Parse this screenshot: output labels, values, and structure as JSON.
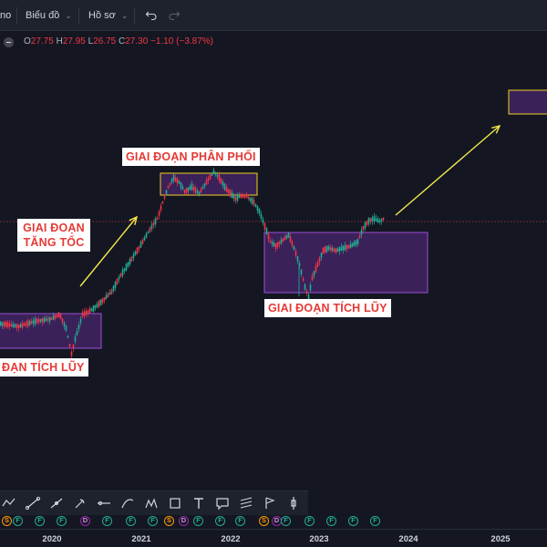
{
  "topbar": {
    "left_fragment": "no",
    "chart_menu": "Biểu đồ",
    "profile_menu": "Hồ sơ"
  },
  "ohlc": {
    "o_label": "O",
    "o": "27.75",
    "h_label": "H",
    "h": "27.95",
    "l_label": "L",
    "l": "26.75",
    "c_label": "C",
    "c": "27.30",
    "change": "−1.10 (−3.87%)"
  },
  "annotations": {
    "tich_luy_1": "ĐẠN TÍCH LŨY",
    "tang_toc": "GIAI ĐOẠN TĂNG TỐC",
    "phan_phoi": "GIAI ĐOẠN PHÂN PHỐI",
    "tich_luy_2": "GIAI ĐOẠN TÍCH LŨY"
  },
  "colors": {
    "background": "#141722",
    "candle_up": "#22ab94",
    "candle_down": "#f23645",
    "zone_fill": "#5b2a86",
    "zone_border_purple": "#9c4fd6",
    "zone_border_yellow": "#f0d020",
    "arrow": "#f5e94a",
    "label_text": "#e53935"
  },
  "icons": [
    "undo-icon",
    "redo-icon",
    "chevron-down-icon",
    "line-tool-icon",
    "brush-icon",
    "text-tool-icon",
    "callout-icon",
    "fib-icon",
    "flag-icon"
  ],
  "events": [
    {
      "type": "s",
      "text": "S"
    },
    {
      "type": "f",
      "text": "F"
    },
    {
      "type": "f",
      "text": "F"
    },
    {
      "type": "f",
      "text": "F"
    },
    {
      "type": "d",
      "text": "D"
    },
    {
      "type": "f",
      "text": "F"
    },
    {
      "type": "f",
      "text": "F"
    },
    {
      "type": "f",
      "text": "F"
    },
    {
      "type": "s",
      "text": "S"
    },
    {
      "type": "d",
      "text": "D"
    },
    {
      "type": "f",
      "text": "F"
    },
    {
      "type": "f",
      "text": "F"
    },
    {
      "type": "f",
      "text": "F"
    },
    {
      "type": "s",
      "text": "S"
    },
    {
      "type": "d",
      "text": "D"
    },
    {
      "type": "f",
      "text": "F"
    },
    {
      "type": "f",
      "text": "F"
    },
    {
      "type": "f",
      "text": "F"
    },
    {
      "type": "f",
      "text": "F"
    },
    {
      "type": "f",
      "text": "F"
    }
  ],
  "xaxis": {
    "years": [
      "2020",
      "2021",
      "2022",
      "2023",
      "2024",
      "2025"
    ]
  }
}
